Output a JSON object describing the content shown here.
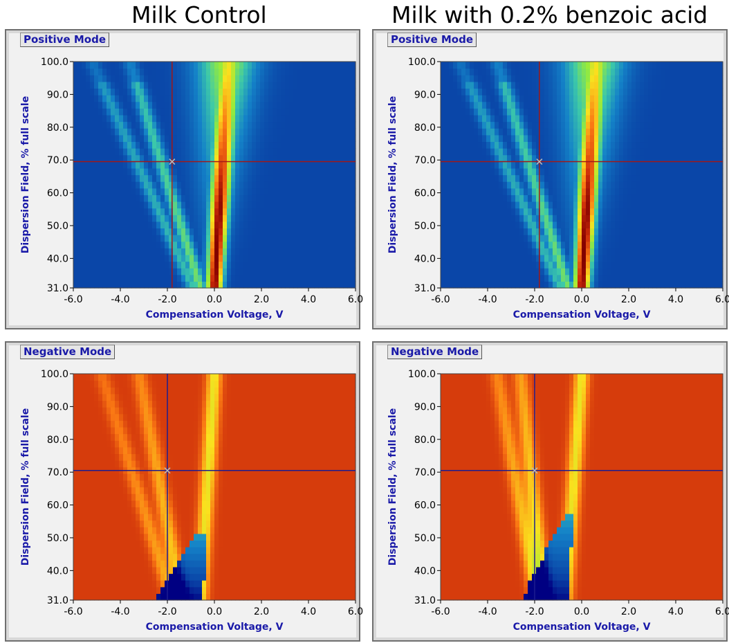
{
  "columns": [
    {
      "title": "Milk Control"
    },
    {
      "title": "Milk with 0.2% benzoic acid"
    }
  ],
  "chart_data": [
    {
      "type": "heatmap",
      "title": "Positive Mode",
      "column": "Milk Control",
      "mode": "positive",
      "xlabel": "Compensation Voltage, V",
      "ylabel": "Dispersion Field, % full scale",
      "xlim": [
        -6.0,
        6.0
      ],
      "ylim": [
        31.0,
        100.0
      ],
      "xticks": [
        "-6.0",
        "-4.0",
        "-2.0",
        "0.0",
        "2.0",
        "4.0",
        "6.0"
      ],
      "yticks": [
        "31.0",
        "40.0",
        "50.0",
        "60.0",
        "70.0",
        "80.0",
        "90.0",
        "100.0"
      ],
      "cursor": {
        "x": -1.8,
        "y": 69.5,
        "color": "#a01818"
      },
      "background_color": "#0a46a8",
      "features": [
        {
          "kind": "rip_peak",
          "cv_at_low_field": 0.0,
          "cv_at_high_field": 0.6,
          "peak_intensity": 1.0
        },
        {
          "kind": "cluster_branch",
          "cv_at_low_field": -0.6,
          "cv_at_high_field": -3.6,
          "intensity": 0.42
        },
        {
          "kind": "cluster_branch",
          "cv_at_low_field": -0.9,
          "cv_at_high_field": -5.2,
          "intensity": 0.32
        }
      ]
    },
    {
      "type": "heatmap",
      "title": "Positive Mode",
      "column": "Milk with 0.2% benzoic acid",
      "mode": "positive",
      "xlabel": "Compensation Voltage, V",
      "ylabel": "Dispersion Field, % full scale",
      "xlim": [
        -6.0,
        6.0
      ],
      "ylim": [
        31.0,
        100.0
      ],
      "xticks": [
        "-6.0",
        "-4.0",
        "-2.0",
        "0.0",
        "2.0",
        "4.0",
        "6.0"
      ],
      "yticks": [
        "31.0",
        "40.0",
        "50.0",
        "60.0",
        "70.0",
        "80.0",
        "90.0",
        "100.0"
      ],
      "cursor": {
        "x": -1.8,
        "y": 69.5,
        "color": "#a01818"
      },
      "background_color": "#0a46a8",
      "features": [
        {
          "kind": "rip_peak",
          "cv_at_low_field": 0.0,
          "cv_at_high_field": 0.6,
          "peak_intensity": 1.0
        },
        {
          "kind": "cluster_branch",
          "cv_at_low_field": -0.6,
          "cv_at_high_field": -3.6,
          "intensity": 0.42
        },
        {
          "kind": "cluster_branch",
          "cv_at_low_field": -0.9,
          "cv_at_high_field": -5.2,
          "intensity": 0.32
        }
      ]
    },
    {
      "type": "heatmap",
      "title": "Negative Mode",
      "column": "Milk Control",
      "mode": "negative",
      "xlabel": "Compensation Voltage, V",
      "ylabel": "Dispersion Field, % full scale",
      "xlim": [
        -6.0,
        6.0
      ],
      "ylim": [
        31.0,
        100.0
      ],
      "xticks": [
        "-6.0",
        "-4.0",
        "-2.0",
        "0.0",
        "2.0",
        "4.0",
        "6.0"
      ],
      "yticks": [
        "31.0",
        "40.0",
        "50.0",
        "60.0",
        "70.0",
        "80.0",
        "90.0",
        "100.0"
      ],
      "cursor": {
        "x": -2.0,
        "y": 70.5,
        "color": "#1c1c90"
      },
      "background_color": "#cc3a0c",
      "features": [
        {
          "kind": "rip_trough",
          "cv_at_low_field": -0.6,
          "cv_at_high_field": 0.0,
          "depletion_top_field": 52
        },
        {
          "kind": "cluster_branch",
          "cv_at_low_field": -1.4,
          "cv_at_high_field": -3.2,
          "intensity": 0.55
        },
        {
          "kind": "cluster_branch",
          "cv_at_low_field": -1.8,
          "cv_at_high_field": -4.8,
          "intensity": 0.4
        }
      ]
    },
    {
      "type": "heatmap",
      "title": "Negative Mode",
      "column": "Milk with 0.2% benzoic acid",
      "mode": "negative",
      "xlabel": "Compensation Voltage, V",
      "ylabel": "Dispersion Field, % full scale",
      "xlim": [
        -6.0,
        6.0
      ],
      "ylim": [
        31.0,
        100.0
      ],
      "xticks": [
        "-6.0",
        "-4.0",
        "-2.0",
        "0.0",
        "2.0",
        "4.0",
        "6.0"
      ],
      "yticks": [
        "31.0",
        "40.0",
        "50.0",
        "60.0",
        "70.0",
        "80.0",
        "90.0",
        "100.0"
      ],
      "cursor": {
        "x": -2.0,
        "y": 70.5,
        "color": "#1c1c90"
      },
      "background_color": "#cc3a0c",
      "features": [
        {
          "kind": "rip_trough",
          "cv_at_low_field": -0.7,
          "cv_at_high_field": 0.0,
          "depletion_top_field": 57
        },
        {
          "kind": "cluster_branch",
          "cv_at_low_field": -1.6,
          "cv_at_high_field": -2.6,
          "intensity": 0.7
        },
        {
          "kind": "cluster_branch",
          "cv_at_low_field": -1.9,
          "cv_at_high_field": -3.6,
          "intensity": 0.55
        }
      ]
    }
  ]
}
